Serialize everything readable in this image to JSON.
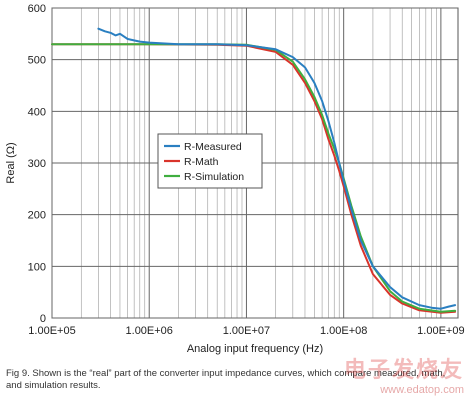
{
  "chart_data": {
    "type": "line",
    "xscale": "log",
    "xlim": [
      100000,
      1500000000
    ],
    "ylim": [
      0,
      600
    ],
    "grid": true,
    "xlabel": "Analog input frequency (Hz)",
    "ylabel": "Real (Ω)",
    "xtick_values": [
      100000,
      1000000,
      10000000,
      100000000,
      1000000000
    ],
    "xtick_labels": [
      "1.00E+05",
      "1.00E+06",
      "1.00E+07",
      "1.00E+08",
      "1.00E+09"
    ],
    "ytick_values": [
      0,
      100,
      200,
      300,
      400,
      500,
      600
    ],
    "ytick_labels": [
      "0",
      "100",
      "200",
      "300",
      "400",
      "500",
      "600"
    ],
    "legend_position": "center",
    "series": [
      {
        "name": "R-Measured",
        "color": "#2a7fc1",
        "points": [
          [
            300000,
            560
          ],
          [
            350000,
            555
          ],
          [
            400000,
            552
          ],
          [
            450000,
            547
          ],
          [
            500000,
            550
          ],
          [
            600000,
            540
          ],
          [
            800000,
            535
          ],
          [
            1000000,
            533
          ],
          [
            2000000,
            530
          ],
          [
            5000000,
            530
          ],
          [
            10000000,
            528
          ],
          [
            20000000,
            520
          ],
          [
            30000000,
            505
          ],
          [
            40000000,
            485
          ],
          [
            50000000,
            455
          ],
          [
            60000000,
            420
          ],
          [
            70000000,
            380
          ],
          [
            80000000,
            340
          ],
          [
            90000000,
            300
          ],
          [
            100000000,
            265
          ],
          [
            120000000,
            210
          ],
          [
            150000000,
            150
          ],
          [
            200000000,
            100
          ],
          [
            300000000,
            60
          ],
          [
            400000000,
            40
          ],
          [
            600000000,
            25
          ],
          [
            800000000,
            20
          ],
          [
            1000000000,
            18
          ],
          [
            1200000000,
            22
          ],
          [
            1400000000,
            25
          ]
        ]
      },
      {
        "name": "R-Math",
        "color": "#d9342b",
        "points": [
          [
            100000,
            530
          ],
          [
            1000000,
            530
          ],
          [
            5000000,
            529
          ],
          [
            10000000,
            527
          ],
          [
            20000000,
            515
          ],
          [
            30000000,
            490
          ],
          [
            40000000,
            455
          ],
          [
            50000000,
            420
          ],
          [
            60000000,
            385
          ],
          [
            70000000,
            345
          ],
          [
            80000000,
            315
          ],
          [
            90000000,
            285
          ],
          [
            100000000,
            255
          ],
          [
            120000000,
            200
          ],
          [
            150000000,
            140
          ],
          [
            200000000,
            85
          ],
          [
            300000000,
            45
          ],
          [
            400000000,
            28
          ],
          [
            600000000,
            15
          ],
          [
            1000000000,
            10
          ],
          [
            1400000000,
            12
          ]
        ]
      },
      {
        "name": "R-Simulation",
        "color": "#3fae3f",
        "points": [
          [
            100000,
            530
          ],
          [
            1000000,
            530
          ],
          [
            5000000,
            530
          ],
          [
            10000000,
            529
          ],
          [
            20000000,
            519
          ],
          [
            30000000,
            496
          ],
          [
            40000000,
            462
          ],
          [
            50000000,
            428
          ],
          [
            60000000,
            393
          ],
          [
            70000000,
            356
          ],
          [
            80000000,
            328
          ],
          [
            90000000,
            300
          ],
          [
            100000000,
            270
          ],
          [
            120000000,
            217
          ],
          [
            150000000,
            158
          ],
          [
            200000000,
            100
          ],
          [
            300000000,
            52
          ],
          [
            400000000,
            32
          ],
          [
            600000000,
            18
          ],
          [
            1000000000,
            12
          ],
          [
            1400000000,
            14
          ]
        ]
      }
    ]
  },
  "caption": "Fig 9. Shown is the “real” part of the converter input impedance curves, which compare measured, math, and simulation results.",
  "watermark": {
    "text": "电子发烧友",
    "url": "www.edatop.com"
  }
}
